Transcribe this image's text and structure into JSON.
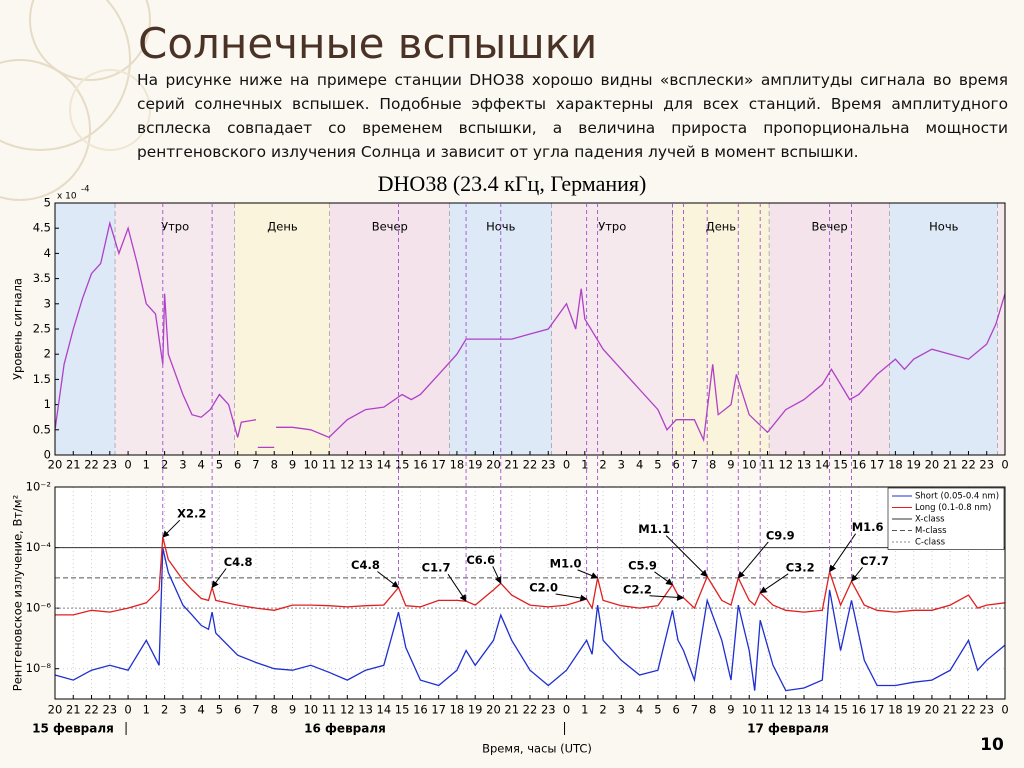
{
  "title": "Солнечные вспышки",
  "paragraph": "На рисунке ниже на примере станции DHO38 хорошо видны «всплески» амплитуды сигнала во время серий солнечных вспышек. Подобные эффекты характерны для всех станций.  Время амплитудного всплеска совпадает со временем вспышки, а величина прироста пропорциональна мощности рентгеновского излучения Солнца и зависит от угла падения лучей в момент вспышки.",
  "caption": "DHO38 (23.4 кГц, Германия)",
  "page_number": "10",
  "chart_data": [
    {
      "type": "line",
      "ylabel": "Уровень сигнала",
      "y_multiplier": {
        "base": "x 10",
        "exponent": "-4"
      },
      "xlim": [
        0,
        52
      ],
      "ylim": [
        0,
        5
      ],
      "yticks": [
        0,
        0.5,
        1,
        1.5,
        2,
        2.5,
        3,
        3.5,
        4,
        4.5,
        5
      ],
      "xticks": [
        {
          "value": 0,
          "label": "20"
        },
        {
          "value": 1,
          "label": "21"
        },
        {
          "value": 2,
          "label": "22"
        },
        {
          "value": 3,
          "label": "23"
        },
        {
          "value": 4,
          "label": "0"
        },
        {
          "value": 5,
          "label": "1"
        },
        {
          "value": 6,
          "label": "2"
        },
        {
          "value": 7,
          "label": "3"
        },
        {
          "value": 8,
          "label": "4"
        },
        {
          "value": 9,
          "label": "5"
        },
        {
          "value": 10,
          "label": "6"
        },
        {
          "value": 11,
          "label": "7"
        },
        {
          "value": 12,
          "label": "8"
        },
        {
          "value": 13,
          "label": "9"
        },
        {
          "value": 14,
          "label": "10"
        },
        {
          "value": 15,
          "label": "11"
        },
        {
          "value": 16,
          "label": "12"
        },
        {
          "value": 17,
          "label": "13"
        },
        {
          "value": 18,
          "label": "14"
        },
        {
          "value": 19,
          "label": "15"
        },
        {
          "value": 20,
          "label": "16"
        },
        {
          "value": 21,
          "label": "17"
        },
        {
          "value": 22,
          "label": "18"
        },
        {
          "value": 23,
          "label": "19"
        },
        {
          "value": 24,
          "label": "20"
        },
        {
          "value": 25,
          "label": "21"
        },
        {
          "value": 26,
          "label": "22"
        },
        {
          "value": 27,
          "label": "23"
        },
        {
          "value": 28,
          "label": "0"
        },
        {
          "value": 29,
          "label": "1"
        },
        {
          "value": 30,
          "label": "2"
        },
        {
          "value": 31,
          "label": "3"
        },
        {
          "value": 32,
          "label": "4"
        },
        {
          "value": 33,
          "label": "5"
        },
        {
          "value": 34,
          "label": "6"
        },
        {
          "value": 35,
          "label": "7"
        },
        {
          "value": 36,
          "label": "8"
        },
        {
          "value": 37,
          "label": "9"
        },
        {
          "value": 38,
          "label": "10"
        },
        {
          "value": 39,
          "label": "11"
        },
        {
          "value": 40,
          "label": "12"
        },
        {
          "value": 41,
          "label": "13"
        },
        {
          "value": 42,
          "label": "14"
        },
        {
          "value": 43,
          "label": "15"
        },
        {
          "value": 44,
          "label": "16"
        },
        {
          "value": 45,
          "label": "17"
        },
        {
          "value": 46,
          "label": "18"
        },
        {
          "value": 47,
          "label": "19"
        },
        {
          "value": 48,
          "label": "20"
        },
        {
          "value": 49,
          "label": "21"
        },
        {
          "value": 50,
          "label": "22"
        },
        {
          "value": 51,
          "label": "23"
        },
        {
          "value": 52,
          "label": "0"
        }
      ],
      "grid": false,
      "zones": [
        {
          "start": 0,
          "end": 3.3,
          "label": null,
          "color": "#dde9f6"
        },
        {
          "start": 3.3,
          "end": 9.85,
          "label": "Утро",
          "color": "#f6e9ee"
        },
        {
          "start": 9.85,
          "end": 15.05,
          "label": "День",
          "color": "#fbf4dc"
        },
        {
          "start": 15.05,
          "end": 21.6,
          "label": "Вечер",
          "color": "#f4e3ea"
        },
        {
          "start": 21.6,
          "end": 27.2,
          "label": "Ночь",
          "color": "#dde9f6"
        },
        {
          "start": 27.2,
          "end": 33.8,
          "label": "Утро",
          "color": "#f6e9ee"
        },
        {
          "start": 33.8,
          "end": 39.1,
          "label": "День",
          "color": "#fbf4dc"
        },
        {
          "start": 39.1,
          "end": 45.7,
          "label": "Вечер",
          "color": "#f4e3ea"
        },
        {
          "start": 45.7,
          "end": 51.6,
          "label": "Ночь",
          "color": "#dde9f6"
        },
        {
          "start": 51.6,
          "end": 52,
          "label": null,
          "color": "#f6e9ee"
        }
      ],
      "x": [
        0,
        0.5,
        1,
        1.5,
        2,
        2.5,
        3,
        3.5,
        4,
        4.5,
        5,
        5.5,
        5.9,
        6,
        6.2,
        7,
        7.5,
        8,
        8.5,
        9,
        9.5,
        10,
        10.2,
        11,
        11.05,
        11.1,
        12,
        12.05,
        12.1,
        13,
        14,
        15,
        16,
        17,
        18,
        19,
        19.5,
        20,
        21,
        22,
        22.5,
        23,
        24,
        25,
        26,
        27,
        28,
        28.5,
        28.8,
        29,
        30,
        31,
        32,
        33,
        33.5,
        34,
        35,
        35.5,
        36,
        36.3,
        37,
        37.3,
        38,
        39,
        40,
        41,
        42,
        42.5,
        43,
        43.5,
        44,
        45,
        46,
        46.5,
        47,
        48,
        49,
        50,
        51,
        51.5,
        52
      ],
      "series": [
        {
          "color": "#b040c8",
          "values": [
            0.5,
            1.8,
            2.5,
            3.1,
            3.6,
            3.8,
            4.6,
            4.0,
            4.5,
            3.8,
            3.0,
            2.8,
            1.8,
            3.2,
            2.0,
            1.2,
            0.8,
            0.75,
            0.9,
            1.2,
            1.0,
            0.35,
            0.65,
            0.7,
            null,
            0.15,
            0.15,
            null,
            0.55,
            0.55,
            0.5,
            0.35,
            0.7,
            0.9,
            0.95,
            1.2,
            1.1,
            1.2,
            1.6,
            2.0,
            2.3,
            2.3,
            2.3,
            2.3,
            2.4,
            2.5,
            3.0,
            2.5,
            3.3,
            2.7,
            2.1,
            1.7,
            1.3,
            0.9,
            0.5,
            0.7,
            0.7,
            0.3,
            1.8,
            0.8,
            1.0,
            1.6,
            0.8,
            0.45,
            0.9,
            1.1,
            1.4,
            1.7,
            1.4,
            1.1,
            1.2,
            1.6,
            1.9,
            1.7,
            1.9,
            2.1,
            2.0,
            1.9,
            2.2,
            2.6,
            3.2
          ]
        }
      ]
    },
    {
      "type": "line",
      "log_scale": true,
      "ylabel": "Рентгеновское излучение, Вт/м²",
      "xlabel": "Время, часы (UTC)",
      "dates": [
        "15 февраля",
        "16 февраля",
        "17 февраля"
      ],
      "xlim": [
        0,
        52
      ],
      "ylim": [
        1e-09,
        0.01
      ],
      "yticks": [
        {
          "value": 0.01,
          "label": "10⁻²"
        },
        {
          "value": 0.0001,
          "label": "10⁻⁴"
        },
        {
          "value": 1e-06,
          "label": "10⁻⁶"
        },
        {
          "value": 1e-08,
          "label": "10⁻⁸"
        }
      ],
      "xticks": [
        {
          "value": 0,
          "label": "20"
        },
        {
          "value": 1,
          "label": "21"
        },
        {
          "value": 2,
          "label": "22"
        },
        {
          "value": 3,
          "label": "23"
        },
        {
          "value": 4,
          "label": "0"
        },
        {
          "value": 5,
          "label": "1"
        },
        {
          "value": 6,
          "label": "2"
        },
        {
          "value": 7,
          "label": "3"
        },
        {
          "value": 8,
          "label": "4"
        },
        {
          "value": 9,
          "label": "5"
        },
        {
          "value": 10,
          "label": "6"
        },
        {
          "value": 11,
          "label": "7"
        },
        {
          "value": 12,
          "label": "8"
        },
        {
          "value": 13,
          "label": "9"
        },
        {
          "value": 14,
          "label": "10"
        },
        {
          "value": 15,
          "label": "11"
        },
        {
          "value": 16,
          "label": "12"
        },
        {
          "value": 17,
          "label": "13"
        },
        {
          "value": 18,
          "label": "14"
        },
        {
          "value": 19,
          "label": "15"
        },
        {
          "value": 20,
          "label": "16"
        },
        {
          "value": 21,
          "label": "17"
        },
        {
          "value": 22,
          "label": "18"
        },
        {
          "value": 23,
          "label": "19"
        },
        {
          "value": 24,
          "label": "20"
        },
        {
          "value": 25,
          "label": "21"
        },
        {
          "value": 26,
          "label": "22"
        },
        {
          "value": 27,
          "label": "23"
        },
        {
          "value": 28,
          "label": "0"
        },
        {
          "value": 29,
          "label": "1"
        },
        {
          "value": 30,
          "label": "2"
        },
        {
          "value": 31,
          "label": "3"
        },
        {
          "value": 32,
          "label": "4"
        },
        {
          "value": 33,
          "label": "5"
        },
        {
          "value": 34,
          "label": "6"
        },
        {
          "value": 35,
          "label": "7"
        },
        {
          "value": 36,
          "label": "8"
        },
        {
          "value": 37,
          "label": "9"
        },
        {
          "value": 38,
          "label": "10"
        },
        {
          "value": 39,
          "label": "11"
        },
        {
          "value": 40,
          "label": "12"
        },
        {
          "value": 41,
          "label": "13"
        },
        {
          "value": 42,
          "label": "14"
        },
        {
          "value": 43,
          "label": "15"
        },
        {
          "value": 44,
          "label": "16"
        },
        {
          "value": 45,
          "label": "17"
        },
        {
          "value": 46,
          "label": "18"
        },
        {
          "value": 47,
          "label": "19"
        },
        {
          "value": 48,
          "label": "20"
        },
        {
          "value": 49,
          "label": "21"
        },
        {
          "value": 50,
          "label": "22"
        },
        {
          "value": 51,
          "label": "23"
        },
        {
          "value": 52,
          "label": "0"
        }
      ],
      "grid": true,
      "legend": "upper right",
      "x": [
        0,
        1,
        2,
        3,
        4,
        5,
        5.7,
        5.9,
        6.2,
        7,
        7.5,
        8,
        8.4,
        8.6,
        8.8,
        10,
        11,
        12,
        13,
        14,
        15,
        16,
        17,
        18,
        18.8,
        19.2,
        20,
        21,
        22,
        22.5,
        23,
        24,
        24.4,
        25,
        26,
        27,
        28,
        29.1,
        29.4,
        29.7,
        30,
        31,
        32,
        33,
        33.8,
        34.1,
        34.4,
        35,
        35.7,
        36.5,
        37,
        37.4,
        38,
        38.3,
        38.6,
        39.3,
        40,
        41,
        42,
        42.4,
        43,
        43.6,
        44.3,
        45,
        46,
        47,
        48,
        49,
        50,
        50.5,
        51,
        52
      ],
      "series": [
        {
          "name": "Short (0.05-0.4 nm)",
          "color": "#1f2fd0",
          "values": [
            6.2e-09,
            4.2e-09,
            8.9e-09,
            1.3e-08,
            8.9e-09,
            8.7e-08,
            1.3e-08,
            9.5e-05,
            1.5e-05,
            1.26e-06,
            6e-07,
            2.7e-07,
            2e-07,
            7.4e-07,
            1.5e-07,
            2.8e-08,
            1.6e-08,
            1e-08,
            8.9e-09,
            1.3e-08,
            7.6e-09,
            4.2e-09,
            8.9e-09,
            1.3e-08,
            7.4e-07,
            5e-08,
            4.2e-09,
            2.8e-09,
            8.9e-09,
            4e-08,
            1.3e-08,
            8.7e-08,
            5.9e-07,
            8.7e-08,
            8.9e-09,
            2.8e-09,
            8.9e-09,
            8.7e-08,
            3e-08,
            1.26e-06,
            8.7e-08,
            1.9e-08,
            6.2e-09,
            8.9e-09,
            8.5e-07,
            8.7e-08,
            4e-08,
            4.2e-09,
            1.8e-06,
            8.7e-08,
            4.2e-09,
            1.26e-06,
            4e-08,
            1.9e-09,
            4e-07,
            1.3e-08,
            1.9e-09,
            2.3e-09,
            4.2e-09,
            4e-06,
            4e-08,
            1.8e-06,
            1.9e-08,
            2.8e-09,
            2.8e-09,
            3.6e-09,
            4.2e-09,
            8.9e-09,
            8.7e-08,
            8.9e-09,
            1.9e-08,
            6e-08
          ]
        },
        {
          "name": "Long (0.1-0.8 nm)",
          "color": "#e02020",
          "values": [
            6e-07,
            6e-07,
            8.5e-07,
            7.4e-07,
            1e-06,
            1.5e-06,
            4e-06,
            0.00022,
            4e-05,
            8.5e-06,
            4e-06,
            2.1e-06,
            1.8e-06,
            4.8e-06,
            1.8e-06,
            1.26e-06,
            1e-06,
            8.5e-07,
            1.26e-06,
            1.26e-06,
            1.2e-06,
            1.1e-06,
            1.2e-06,
            1.26e-06,
            4.8e-06,
            1.2e-06,
            1.1e-06,
            1.8e-06,
            1.8e-06,
            1.7e-06,
            1.26e-06,
            4e-06,
            6.6e-06,
            2.7e-06,
            1.26e-06,
            1.1e-06,
            1.26e-06,
            2e-06,
            1e-06,
            1e-05,
            1.8e-06,
            1.2e-06,
            1e-06,
            1.2e-06,
            5.9e-06,
            2.7e-06,
            2.2e-06,
            1e-06,
            1.1e-05,
            1.8e-06,
            1.26e-06,
            9.9e-06,
            1.8e-06,
            1.26e-06,
            3.2e-06,
            1.26e-06,
            8.5e-07,
            7.4e-07,
            8.5e-07,
            1.6e-05,
            1.26e-06,
            7.7e-06,
            1.26e-06,
            8.5e-07,
            7.4e-07,
            8.5e-07,
            8.5e-07,
            1.26e-06,
            2.7e-06,
            1e-06,
            1.26e-06,
            1.5e-06
          ]
        }
      ],
      "thresholds": [
        {
          "name": "X-class",
          "value": 0.0001,
          "style": "solid",
          "color": "#333333"
        },
        {
          "name": "M-class",
          "value": 1e-05,
          "style": "dashed",
          "color": "#555555"
        },
        {
          "name": "C-class",
          "value": 1e-06,
          "style": "dotted",
          "color": "#888888"
        }
      ],
      "annotations": [
        {
          "text": "X2.2",
          "x": 5.9,
          "y": 0.00022
        },
        {
          "text": "C4.8",
          "x": 8.6,
          "y": 4.8e-06
        },
        {
          "text": "C4.8",
          "x": 18.8,
          "y": 4.8e-06
        },
        {
          "text": "C1.7",
          "x": 22.5,
          "y": 1.7e-06
        },
        {
          "text": "C6.6",
          "x": 24.4,
          "y": 6.6e-06
        },
        {
          "text": "M1.0",
          "x": 29.7,
          "y": 1e-05
        },
        {
          "text": "C2.0",
          "x": 29.1,
          "y": 2e-06
        },
        {
          "text": "C5.9",
          "x": 33.8,
          "y": 5.9e-06
        },
        {
          "text": "C2.2",
          "x": 34.4,
          "y": 2.2e-06
        },
        {
          "text": "M1.1",
          "x": 35.7,
          "y": 1.1e-05
        },
        {
          "text": "C9.9",
          "x": 37.4,
          "y": 9.9e-06
        },
        {
          "text": "C3.2",
          "x": 38.6,
          "y": 3.2e-06
        },
        {
          "text": "M1.6",
          "x": 42.4,
          "y": 1.6e-05
        },
        {
          "text": "C7.7",
          "x": 43.6,
          "y": 7.7e-06
        }
      ]
    }
  ]
}
